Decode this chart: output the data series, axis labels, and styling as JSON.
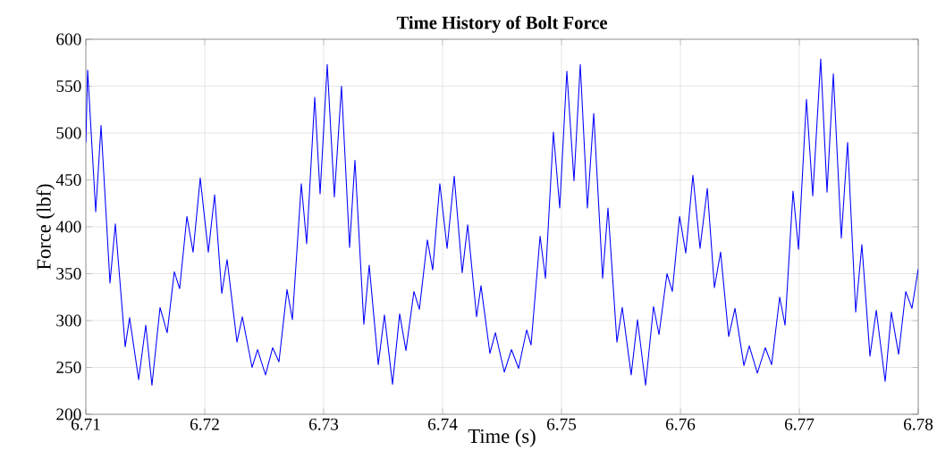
{
  "chart_data": {
    "type": "line",
    "title": "Time History of Bolt Force",
    "xlabel": "Time (s)",
    "ylabel": "Force (lbf)",
    "xlim": [
      6.71,
      6.78
    ],
    "ylim": [
      200,
      600
    ],
    "xticks": [
      6.71,
      6.72,
      6.73,
      6.74,
      6.75,
      6.76,
      6.77,
      6.78
    ],
    "yticks": [
      200,
      250,
      300,
      350,
      400,
      450,
      500,
      550,
      600
    ],
    "grid": true,
    "marker": "none",
    "line_style": "solid",
    "series": [
      {
        "color": "#0000ff",
        "x": [
          6.71,
          6.71015,
          6.71083,
          6.71128,
          6.71203,
          6.71248,
          6.71331,
          6.71368,
          6.71444,
          6.71504,
          6.71556,
          6.71624,
          6.71684,
          6.71744,
          6.71789,
          6.7185,
          6.71902,
          6.71962,
          6.7203,
          6.72083,
          6.72143,
          6.72188,
          6.72271,
          6.72316,
          6.72398,
          6.72444,
          6.72511,
          6.72571,
          6.72624,
          6.72692,
          6.72737,
          6.72812,
          6.72857,
          6.72925,
          6.7297,
          6.7303,
          6.7309,
          6.7315,
          6.73218,
          6.73263,
          6.73338,
          6.73383,
          6.73459,
          6.73511,
          6.73579,
          6.73639,
          6.73692,
          6.73759,
          6.73805,
          6.73872,
          6.73917,
          6.73977,
          6.74038,
          6.74098,
          6.74165,
          6.74211,
          6.74286,
          6.74323,
          6.74398,
          6.74444,
          6.74519,
          6.74579,
          6.74639,
          6.74707,
          6.74744,
          6.7482,
          6.74865,
          6.74932,
          6.74985,
          6.75045,
          6.75105,
          6.75158,
          6.75218,
          6.75271,
          6.75346,
          6.75391,
          6.75466,
          6.75511,
          6.75586,
          6.75639,
          6.75707,
          6.75774,
          6.7582,
          6.75887,
          6.75932,
          6.75993,
          6.76045,
          6.76105,
          6.76165,
          6.76226,
          6.76286,
          6.76338,
          6.76406,
          6.76459,
          6.76534,
          6.76579,
          6.76647,
          6.76714,
          6.76767,
          6.76835,
          6.7688,
          6.76947,
          6.76993,
          6.7706,
          6.77113,
          6.7718,
          6.77233,
          6.77286,
          6.77353,
          6.77406,
          6.77474,
          6.77526,
          6.77594,
          6.77647,
          6.77722,
          6.77774,
          6.77835,
          6.77895,
          6.77947,
          6.78
        ],
        "values": [
          490,
          567,
          416,
          508,
          340,
          403,
          272,
          303,
          237,
          295,
          231,
          314,
          287,
          352,
          334,
          411,
          373,
          452,
          373,
          434,
          329,
          365,
          277,
          304,
          250,
          269,
          242,
          271,
          256,
          333,
          301,
          446,
          382,
          538,
          435,
          573,
          432,
          550,
          378,
          471,
          296,
          359,
          253,
          306,
          232,
          307,
          268,
          331,
          312,
          386,
          354,
          446,
          377,
          454,
          351,
          402,
          304,
          337,
          265,
          287,
          245,
          269,
          249,
          290,
          274,
          390,
          345,
          501,
          420,
          566,
          449,
          573,
          420,
          521,
          345,
          420,
          277,
          314,
          242,
          301,
          231,
          315,
          285,
          350,
          331,
          411,
          372,
          455,
          377,
          441,
          335,
          373,
          283,
          313,
          252,
          273,
          244,
          271,
          253,
          325,
          295,
          438,
          376,
          536,
          433,
          579,
          437,
          563,
          388,
          490,
          309,
          381,
          262,
          311,
          235,
          309,
          264,
          331,
          313,
          355
        ]
      }
    ]
  }
}
